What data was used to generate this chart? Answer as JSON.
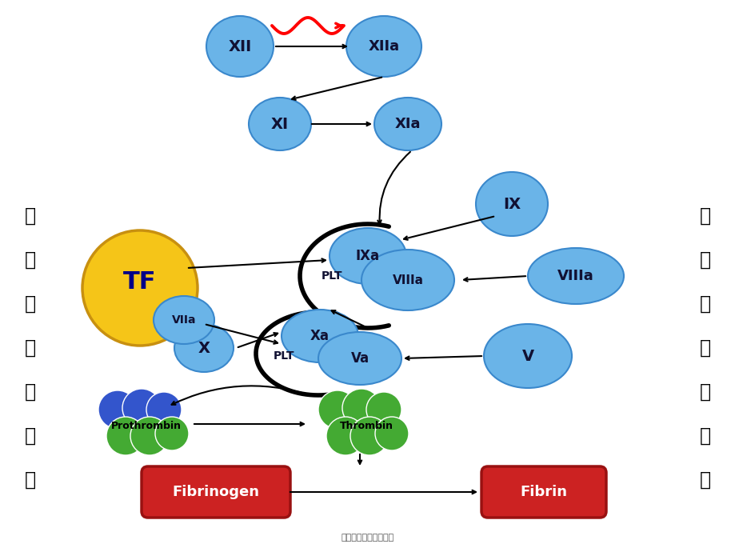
{
  "bg_color": "#ffffff",
  "bc": "#6ab4e8",
  "be": "#3a88cc",
  "bc_light": "#a8d4f5",
  "yellow_face": "#f5c518",
  "yellow_edge": "#c89010",
  "green_color": "#44aa33",
  "blue_sphere": "#3355cc",
  "red_box": "#cc2222",
  "red_box_edge": "#991111",
  "left_chars": [
    "外",
    "源",
    "性",
    "凝",
    "血",
    "系",
    "统"
  ],
  "right_chars": [
    "内",
    "源",
    "性",
    "凝",
    "血",
    "系",
    "统"
  ],
  "footer": "第二页，共四十九页。"
}
